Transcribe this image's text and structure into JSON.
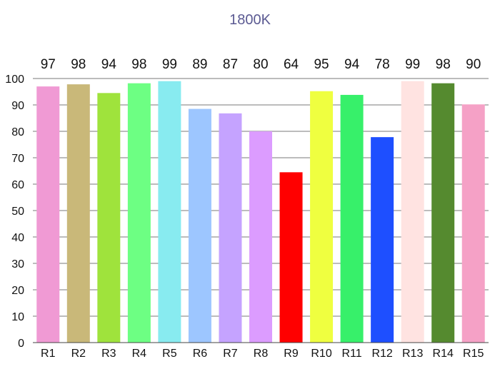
{
  "chart_data": {
    "type": "bar",
    "title": "1800K",
    "xlabel": "",
    "ylabel": "",
    "categories": [
      "R1",
      "R2",
      "R3",
      "R4",
      "R5",
      "R6",
      "R7",
      "R8",
      "R9",
      "R10",
      "R11",
      "R12",
      "R13",
      "R14",
      "R15"
    ],
    "values": [
      97,
      98,
      94,
      98,
      99,
      89,
      87,
      80,
      64,
      95,
      94,
      78,
      99,
      98,
      90
    ],
    "bar_values": [
      97,
      97.8,
      94.5,
      98.2,
      99,
      88.5,
      86.8,
      80,
      64.5,
      95.2,
      93.8,
      77.8,
      99,
      98.2,
      90.2
    ],
    "colors": [
      "#f09ad4",
      "#c9b879",
      "#9fe33c",
      "#6dff83",
      "#88ebf0",
      "#9dc6ff",
      "#c5a3ff",
      "#dc9cff",
      "#ff0000",
      "#efff40",
      "#37f06a",
      "#1e4fff",
      "#ffe3e1",
      "#558a2f",
      "#f5a1c6"
    ],
    "ylim": [
      0,
      100
    ],
    "yticks": [
      0,
      10,
      20,
      30,
      40,
      50,
      60,
      70,
      80,
      90,
      100
    ],
    "grid": true,
    "legend": "none"
  }
}
